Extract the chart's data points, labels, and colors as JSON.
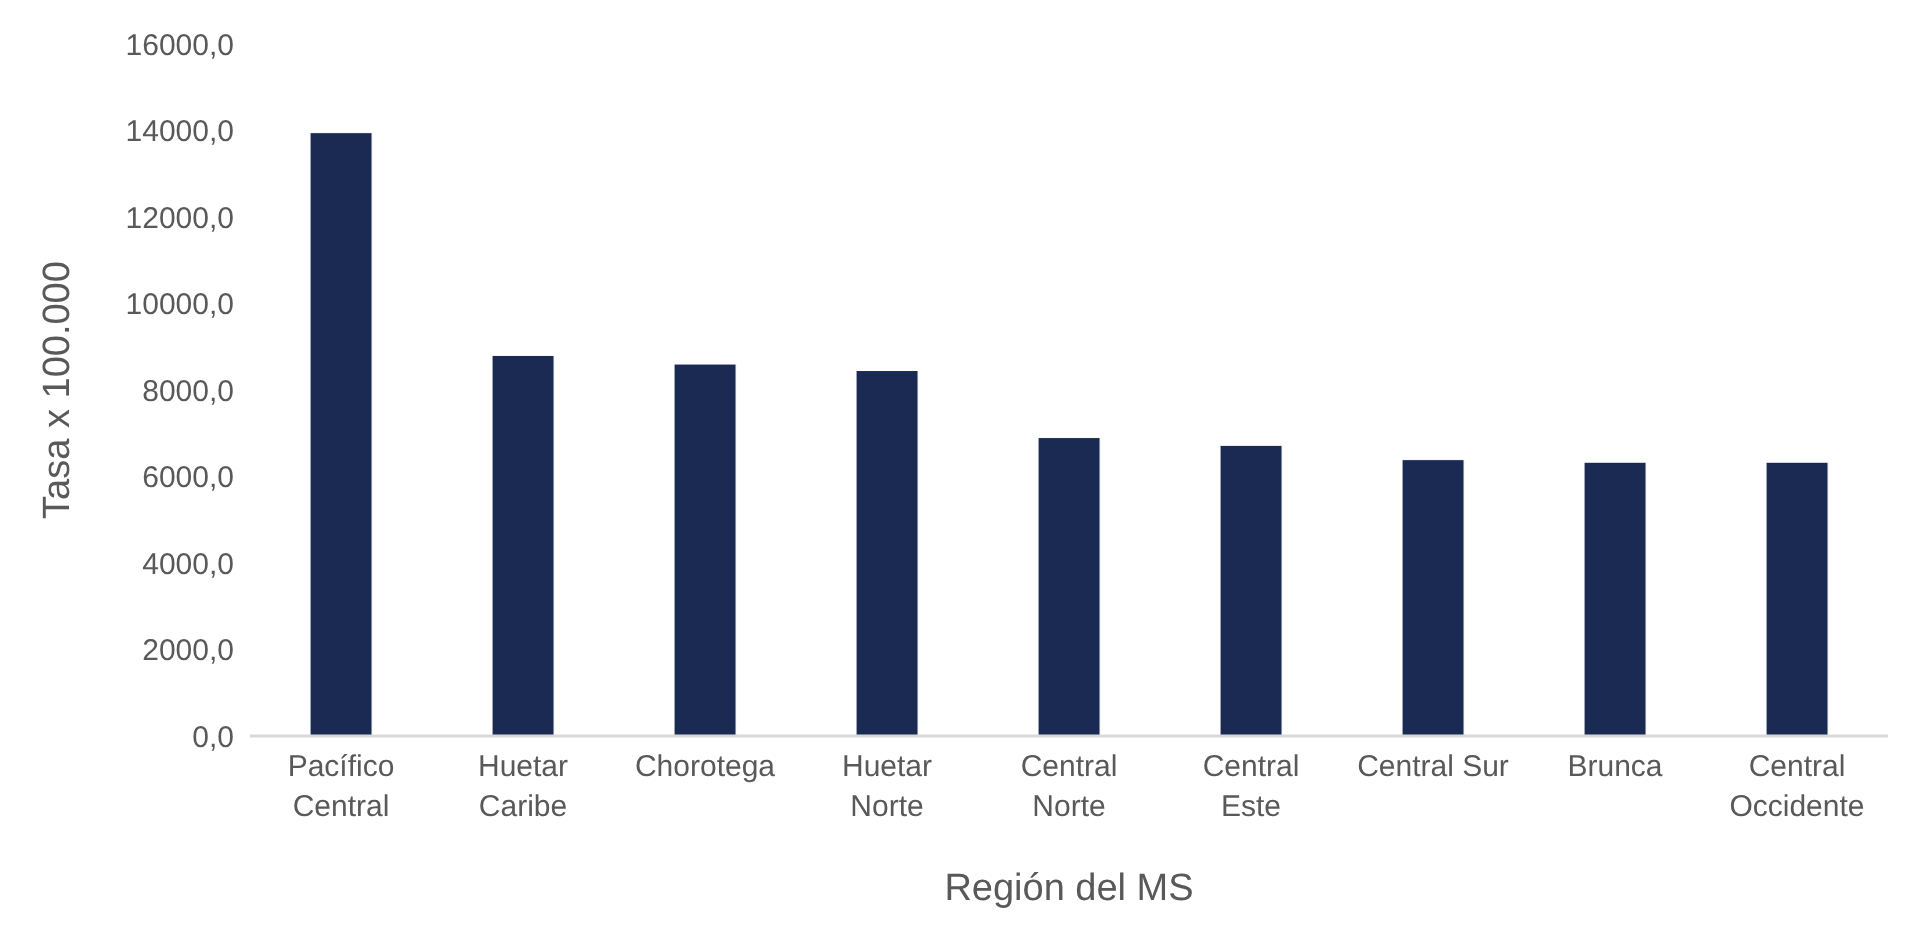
{
  "chart_data": {
    "type": "bar",
    "xlabel": "Región del MS",
    "ylabel": "Tasa x 100.000",
    "categories": [
      "Pacífico\nCentral",
      "Huetar\nCaribe",
      "Chorotega",
      "Huetar\nNorte",
      "Central\nNorte",
      "Central\nEste",
      "Central Sur",
      "Brunca",
      "Central\nOccidente"
    ],
    "values": [
      13950,
      8800,
      8600,
      8450,
      6900,
      6720,
      6390,
      6330,
      6330
    ],
    "color": "#1a2a52",
    "ylim": [
      0,
      16000
    ],
    "yticks": [
      {
        "value": 0,
        "label": "0,0"
      },
      {
        "value": 2000,
        "label": "2000,0"
      },
      {
        "value": 4000,
        "label": "4000,0"
      },
      {
        "value": 6000,
        "label": "6000,0"
      },
      {
        "value": 8000,
        "label": "8000,0"
      },
      {
        "value": 10000,
        "label": "10000,0"
      },
      {
        "value": 12000,
        "label": "12000,0"
      },
      {
        "value": 14000,
        "label": "14000,0"
      },
      {
        "value": 16000,
        "label": "16000,0"
      }
    ],
    "grid": false
  }
}
